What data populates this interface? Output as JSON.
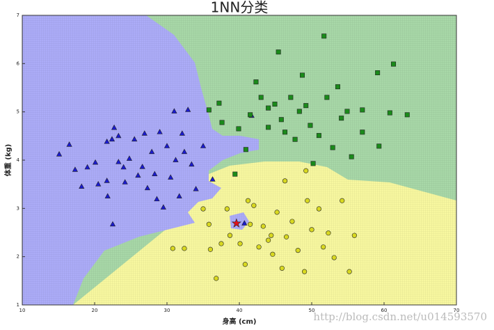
{
  "chart_data": {
    "type": "scatter",
    "title": "1NN分类",
    "x_label": "身高 (cm)",
    "y_label": "体重 (kg)",
    "watermark": "http://blog.csdn.net/u014593570",
    "xlim": [
      10,
      70
    ],
    "ylim": [
      1,
      7
    ],
    "xticks": [
      10,
      20,
      30,
      40,
      50,
      60,
      70
    ],
    "yticks": [
      1,
      2,
      3,
      4,
      5,
      6,
      7
    ],
    "series": [
      {
        "marker": "triangle",
        "color": "#1a1ad0",
        "x": [
          15.1,
          16.5,
          17.3,
          18.2,
          19,
          20.1,
          20.5,
          21.7,
          21.7,
          21.8,
          22.4,
          22.5,
          22.7,
          23.3,
          23.3,
          24,
          24.2,
          24.8,
          25.5,
          26,
          26.6,
          26.9,
          27.3,
          27.9,
          28.3,
          28.6,
          29,
          29.5,
          30,
          30.5,
          31,
          31.2,
          31.7,
          32.1,
          32.4,
          32.9,
          33.4,
          34,
          35,
          36.3,
          41.7,
          40.7
        ],
        "y": [
          4.12,
          4.32,
          3.8,
          3.45,
          3.85,
          3.95,
          3.5,
          3.57,
          4.38,
          3.25,
          4.43,
          2.67,
          4.67,
          4.5,
          3.96,
          3.85,
          3.54,
          4.03,
          4.43,
          3.68,
          3.86,
          4.55,
          3.42,
          4.17,
          3.71,
          3.19,
          4.58,
          3.02,
          4.29,
          3.64,
          5.01,
          4,
          3.25,
          4.55,
          4.17,
          5.04,
          3.91,
          3.4,
          4.29,
          3.6,
          4.92,
          2.69
        ]
      },
      {
        "marker": "square",
        "color": "#1a8a1a",
        "x": [
          35.8,
          37.2,
          37.6,
          39.4,
          39.9,
          40.9,
          41.5,
          42.3,
          43,
          44,
          44.9,
          45.4,
          45.8,
          46.3,
          47.1,
          47.7,
          48.7,
          49.2,
          49.8,
          50.2,
          51,
          51.7,
          52.1,
          52.9,
          53.6,
          54.1,
          54.9,
          55.5,
          57,
          59.1,
          59.3,
          60.8,
          61.3,
          63.2,
          57,
          48.3,
          44
        ],
        "y": [
          5.04,
          5.18,
          4.78,
          3.71,
          4.65,
          4.22,
          4.94,
          5.62,
          5.3,
          4.68,
          5.16,
          6.24,
          4.84,
          4.58,
          5.3,
          4.43,
          5.76,
          5.13,
          4.72,
          3.93,
          4.51,
          6.57,
          5.3,
          4.26,
          5.52,
          4.87,
          5.01,
          4.07,
          5.04,
          5.81,
          4.29,
          4.98,
          5.99,
          4.94,
          4.58,
          5.01,
          5.08
        ]
      },
      {
        "marker": "circle",
        "color": "#d8d820",
        "x": [
          30.8,
          32.4,
          35,
          35.8,
          36,
          36.8,
          37.5,
          38.3,
          38.7,
          40.1,
          40.8,
          41.5,
          42,
          42.7,
          43.3,
          44,
          44.6,
          45.2,
          45.9,
          46.3,
          46.5,
          47.3,
          48.1,
          49,
          49.4,
          50,
          51,
          51.6,
          52.3,
          53.1,
          54.2,
          55.2,
          55.9,
          49.2,
          44.4,
          41.2
        ],
        "y": [
          2.17,
          2.17,
          2.99,
          2.67,
          2.15,
          1.55,
          2.27,
          2.99,
          2.44,
          2.27,
          1.84,
          2.67,
          3.06,
          2.2,
          2.63,
          2.34,
          2.05,
          2.92,
          1.76,
          3.57,
          2.41,
          2.73,
          2.13,
          1.69,
          3.16,
          2.56,
          2.99,
          2.2,
          2.49,
          1.98,
          3.16,
          1.69,
          2.44,
          3.78,
          2.44,
          3.16
        ]
      },
      {
        "marker": "star",
        "color": "#e0101a",
        "x": [
          39.6
        ],
        "y": [
          2.69
        ]
      }
    ]
  }
}
